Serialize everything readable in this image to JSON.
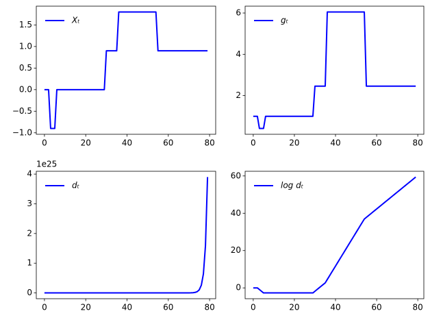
{
  "chart_data": [
    {
      "type": "line",
      "legend": "upper left",
      "xlim": [
        -3.95,
        82.95
      ],
      "ylim": [
        -1.035,
        1.935
      ],
      "xticks": [
        0,
        20,
        40,
        60,
        80
      ],
      "yticks": [
        {
          "value": -1.0,
          "label": "−1.0"
        },
        {
          "value": -0.5,
          "label": "−0.5"
        },
        {
          "value": 0.0,
          "label": "0.0"
        },
        {
          "value": 0.5,
          "label": "0.5"
        },
        {
          "value": 1.0,
          "label": "1.0"
        },
        {
          "value": 1.5,
          "label": "1.5"
        }
      ],
      "x": [
        0,
        1,
        2,
        3,
        4,
        5,
        6,
        7,
        8,
        9,
        10,
        11,
        12,
        13,
        14,
        15,
        16,
        17,
        18,
        19,
        20,
        21,
        22,
        23,
        24,
        25,
        26,
        27,
        28,
        29,
        30,
        31,
        32,
        33,
        34,
        35,
        36,
        37,
        38,
        39,
        40,
        41,
        42,
        43,
        44,
        45,
        46,
        47,
        48,
        49,
        50,
        51,
        52,
        53,
        54,
        55,
        56,
        57,
        58,
        59,
        60,
        61,
        62,
        63,
        64,
        65,
        66,
        67,
        68,
        69,
        70,
        71,
        72,
        73,
        74,
        75,
        76,
        77,
        78,
        79
      ],
      "series": [
        {
          "name": "Xₜ",
          "color": "#0000ff",
          "values": [
            0,
            0,
            0,
            -0.9,
            -0.9,
            -0.9,
            0,
            0,
            0,
            0,
            0,
            0,
            0,
            0,
            0,
            0,
            0,
            0,
            0,
            0,
            0,
            0,
            0,
            0,
            0,
            0,
            0,
            0,
            0,
            0,
            0.9,
            0.9,
            0.9,
            0.9,
            0.9,
            0.9,
            1.8,
            1.8,
            1.8,
            1.8,
            1.8,
            1.8,
            1.8,
            1.8,
            1.8,
            1.8,
            1.8,
            1.8,
            1.8,
            1.8,
            1.8,
            1.8,
            1.8,
            1.8,
            1.8,
            0.9,
            0.9,
            0.9,
            0.9,
            0.9,
            0.9,
            0.9,
            0.9,
            0.9,
            0.9,
            0.9,
            0.9,
            0.9,
            0.9,
            0.9,
            0.9,
            0.9,
            0.9,
            0.9,
            0.9,
            0.9,
            0.9,
            0.9,
            0.9,
            0.9
          ]
        }
      ]
    },
    {
      "type": "line",
      "legend": "upper left",
      "xlim": [
        -3.95,
        82.95
      ],
      "ylim": [
        0.128,
        6.332
      ],
      "xticks": [
        0,
        20,
        40,
        60,
        80
      ],
      "yticks": [
        2,
        4,
        6
      ],
      "x": [
        0,
        1,
        2,
        3,
        4,
        5,
        6,
        7,
        8,
        9,
        10,
        11,
        12,
        13,
        14,
        15,
        16,
        17,
        18,
        19,
        20,
        21,
        22,
        23,
        24,
        25,
        26,
        27,
        28,
        29,
        30,
        31,
        32,
        33,
        34,
        35,
        36,
        37,
        38,
        39,
        40,
        41,
        42,
        43,
        44,
        45,
        46,
        47,
        48,
        49,
        50,
        51,
        52,
        53,
        54,
        55,
        56,
        57,
        58,
        59,
        60,
        61,
        62,
        63,
        64,
        65,
        66,
        67,
        68,
        69,
        70,
        71,
        72,
        73,
        74,
        75,
        76,
        77,
        78,
        79
      ],
      "series": [
        {
          "name": "gₜ",
          "color": "#0000ff",
          "values": [
            1,
            1,
            1,
            0.41,
            0.41,
            0.41,
            1,
            1,
            1,
            1,
            1,
            1,
            1,
            1,
            1,
            1,
            1,
            1,
            1,
            1,
            1,
            1,
            1,
            1,
            1,
            1,
            1,
            1,
            1,
            1,
            2.46,
            2.46,
            2.46,
            2.46,
            2.46,
            2.46,
            6.05,
            6.05,
            6.05,
            6.05,
            6.05,
            6.05,
            6.05,
            6.05,
            6.05,
            6.05,
            6.05,
            6.05,
            6.05,
            6.05,
            6.05,
            6.05,
            6.05,
            6.05,
            6.05,
            2.46,
            2.46,
            2.46,
            2.46,
            2.46,
            2.46,
            2.46,
            2.46,
            2.46,
            2.46,
            2.46,
            2.46,
            2.46,
            2.46,
            2.46,
            2.46,
            2.46,
            2.46,
            2.46,
            2.46,
            2.46,
            2.46,
            2.46,
            2.46,
            2.46
          ]
        }
      ]
    },
    {
      "type": "line",
      "legend": "upper left",
      "xlim": [
        -3.95,
        82.95
      ],
      "ylim": [
        -1.95e+24,
        4.095e+25
      ],
      "offset_text": "1e25",
      "xticks": [
        0,
        20,
        40,
        60,
        80
      ],
      "yticks": [
        {
          "value": 0,
          "label": "0"
        },
        {
          "value": 1e+25,
          "label": "1"
        },
        {
          "value": 2e+25,
          "label": "2"
        },
        {
          "value": 3e+25,
          "label": "3"
        },
        {
          "value": 4e+25,
          "label": "4"
        }
      ],
      "x": [
        0,
        1,
        2,
        3,
        4,
        5,
        6,
        7,
        8,
        9,
        10,
        11,
        12,
        13,
        14,
        15,
        16,
        17,
        18,
        19,
        20,
        21,
        22,
        23,
        24,
        25,
        26,
        27,
        28,
        29,
        30,
        31,
        32,
        33,
        34,
        35,
        36,
        37,
        38,
        39,
        40,
        41,
        42,
        43,
        44,
        45,
        46,
        47,
        48,
        49,
        50,
        51,
        52,
        53,
        54,
        55,
        56,
        57,
        58,
        59,
        60,
        61,
        62,
        63,
        64,
        65,
        66,
        67,
        68,
        69,
        70,
        71,
        72,
        73,
        74,
        75,
        76,
        77,
        78,
        79
      ],
      "series": [
        {
          "name": "dₜ",
          "color": "#0000ff",
          "values": [
            0,
            0,
            0,
            0,
            0,
            0,
            0,
            0,
            0,
            0,
            0,
            0,
            0,
            0,
            0,
            0,
            0,
            0,
            0,
            0,
            0,
            0,
            0,
            0,
            0,
            0,
            0,
            0,
            0,
            0,
            0,
            0,
            0,
            0,
            0,
            0,
            0,
            0,
            0,
            0,
            0,
            0,
            0,
            0,
            0,
            0,
            0,
            0,
            0,
            0,
            0,
            0,
            0,
            0,
            0,
            0,
            0,
            0,
            0,
            0,
            0,
            0,
            0,
            0,
            0,
            0,
            0,
            0,
            0,
            0,
            1.2e+22,
            2.9e+22,
            7.1e+22,
            1.75e+23,
            4.3e+23,
            1.06e+24,
            2.6e+24,
            6.4e+24,
            1.59e+25,
            3.9e+25
          ]
        }
      ]
    },
    {
      "type": "line",
      "legend": "upper left",
      "xlim": [
        -3.95,
        82.95
      ],
      "ylim": [
        -5.8,
        62.5
      ],
      "xticks": [
        0,
        20,
        40,
        60,
        80
      ],
      "yticks": [
        0,
        20,
        40,
        60
      ],
      "x": [
        0,
        1,
        2,
        3,
        4,
        5,
        6,
        7,
        8,
        9,
        10,
        11,
        12,
        13,
        14,
        15,
        16,
        17,
        18,
        19,
        20,
        21,
        22,
        23,
        24,
        25,
        26,
        27,
        28,
        29,
        30,
        31,
        32,
        33,
        34,
        35,
        36,
        37,
        38,
        39,
        40,
        41,
        42,
        43,
        44,
        45,
        46,
        47,
        48,
        49,
        50,
        51,
        52,
        53,
        54,
        55,
        56,
        57,
        58,
        59,
        60,
        61,
        62,
        63,
        64,
        65,
        66,
        67,
        68,
        69,
        70,
        71,
        72,
        73,
        74,
        75,
        76,
        77,
        78,
        79
      ],
      "series": [
        {
          "name": "log dₜ",
          "color": "#0000ff",
          "values": [
            0,
            0,
            0,
            -0.9,
            -1.8,
            -2.7,
            -2.7,
            -2.7,
            -2.7,
            -2.7,
            -2.7,
            -2.7,
            -2.7,
            -2.7,
            -2.7,
            -2.7,
            -2.7,
            -2.7,
            -2.7,
            -2.7,
            -2.7,
            -2.7,
            -2.7,
            -2.7,
            -2.7,
            -2.7,
            -2.7,
            -2.7,
            -2.7,
            -2.7,
            -1.8,
            -0.9,
            0,
            0.9,
            1.8,
            2.7,
            4.5,
            6.3,
            8.1,
            9.9,
            11.7,
            13.5,
            15.3,
            17.1,
            18.9,
            20.7,
            22.5,
            24.3,
            26.1,
            27.9,
            29.7,
            31.5,
            33.3,
            35.1,
            36.9,
            37.8,
            38.7,
            39.6,
            40.5,
            41.4,
            42.3,
            43.2,
            44.1,
            45,
            45.9,
            46.8,
            47.7,
            48.6,
            49.5,
            50.4,
            51.3,
            52.2,
            53.1,
            54,
            54.9,
            55.8,
            56.7,
            57.6,
            58.5,
            59.4
          ]
        }
      ]
    }
  ]
}
